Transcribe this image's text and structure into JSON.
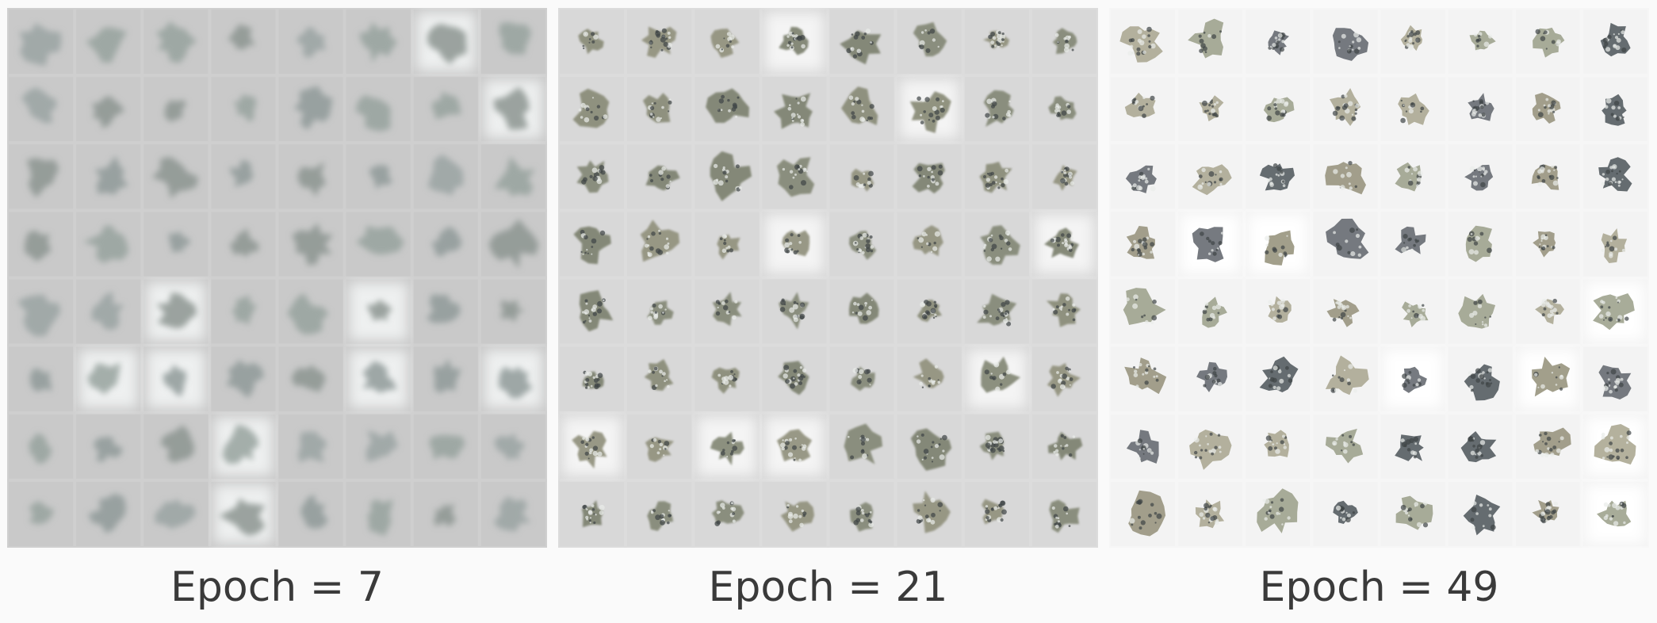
{
  "figure": {
    "panels": [
      {
        "caption": "Epoch = 7",
        "style": {
          "background": "#cfcfcf",
          "cell_background": "#c9c9c9",
          "blob_colors": [
            "#8f9a99",
            "#97a29e",
            "#8c9591",
            "#9aa3a2"
          ],
          "highlight_color": "#eef0f0",
          "sharpness": "blurred"
        }
      },
      {
        "caption": "Epoch = 21",
        "style": {
          "background": "#dcdcdc",
          "cell_background": "#d8d8d8",
          "blob_colors": [
            "#8b8d7a",
            "#868a78",
            "#93947f",
            "#7f8472"
          ],
          "highlight_color": "#f4f4f4",
          "sharpness": "textured"
        }
      },
      {
        "caption": "Epoch = 49",
        "style": {
          "background": "#f6f6f6",
          "cell_background": "#f3f3f3",
          "blob_colors": [
            "#9d9a85",
            "#6f7378",
            "#a3a893",
            "#5e6468",
            "#b0ad98"
          ],
          "highlight_color": "#ffffff",
          "sharpness": "sharp"
        }
      }
    ],
    "grid": {
      "rows": 8,
      "cols": 8
    }
  }
}
